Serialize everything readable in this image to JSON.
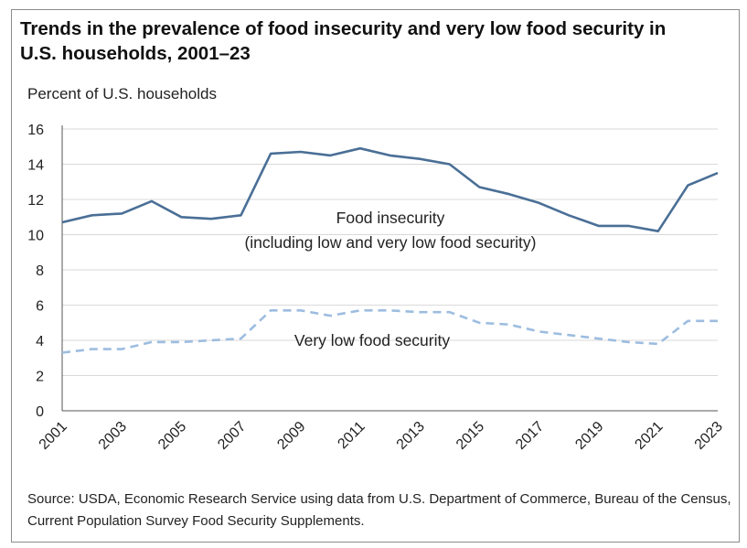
{
  "chart_data": {
    "type": "line",
    "title": "Trends in the prevalence of food insecurity and very low food security in U.S. households, 2001–23",
    "ylabel": "Percent of U.S. households",
    "xlabel": "",
    "ylim": [
      0,
      16
    ],
    "yticks": [
      "0",
      "2",
      "4",
      "6",
      "8",
      "10",
      "12",
      "14",
      "16"
    ],
    "x": [
      2001,
      2002,
      2003,
      2004,
      2005,
      2006,
      2007,
      2008,
      2009,
      2010,
      2011,
      2012,
      2013,
      2014,
      2015,
      2016,
      2017,
      2018,
      2019,
      2020,
      2021,
      2022,
      2023
    ],
    "xticks": [
      "2001",
      "2003",
      "2005",
      "2007",
      "2009",
      "2011",
      "2013",
      "2015",
      "2017",
      "2019",
      "2021",
      "2023"
    ],
    "grid": "horizontal",
    "legend": "none",
    "series": [
      {
        "name": "Food insecurity (including low and very low food security)",
        "style": "solid",
        "color": "#4a6f96",
        "values": [
          10.7,
          11.1,
          11.2,
          11.9,
          11.0,
          10.9,
          11.1,
          14.6,
          14.7,
          14.5,
          14.9,
          14.5,
          14.3,
          14.0,
          12.7,
          12.3,
          11.8,
          11.1,
          10.5,
          10.5,
          10.2,
          12.8,
          13.5
        ]
      },
      {
        "name": "Very low food security",
        "style": "dashed",
        "color": "#9dbde0",
        "values": [
          3.3,
          3.5,
          3.5,
          3.9,
          3.9,
          4.0,
          4.1,
          5.7,
          5.7,
          5.4,
          5.7,
          5.7,
          5.6,
          5.6,
          5.0,
          4.9,
          4.5,
          4.3,
          4.1,
          3.9,
          3.8,
          5.1,
          5.1
        ]
      }
    ],
    "annotations": [
      {
        "line1": "Food insecurity",
        "line2": "(including low and very low food security)"
      },
      {
        "line1": "Very low food security"
      }
    ]
  },
  "source": "Source: USDA, Economic Research Service using data from U.S. Department of Commerce, Bureau of the Census, Current Population Survey Food Security Supplements.",
  "colors": {
    "grid": "#d9d9d9",
    "axis": "#555555"
  }
}
